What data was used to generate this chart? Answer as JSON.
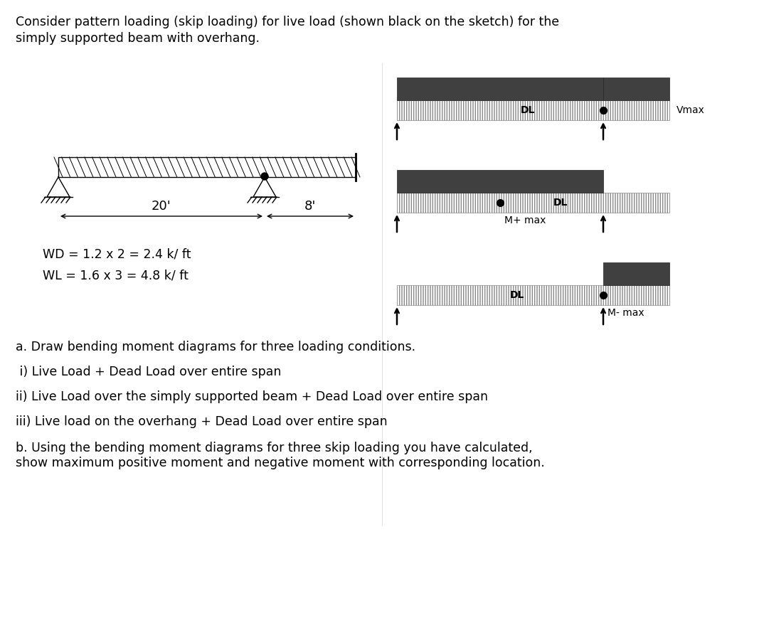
{
  "title_line1": "Consider pattern loading (skip loading) for live load (shown black on the sketch) for the",
  "title_line2": "simply supported beam with overhang.",
  "wd_text": "WD = 1.2 x 2 = 2.4 k/ ft",
  "wl_text": "WL = 1.6 x 3 = 4.8 k/ ft",
  "part_a_text": "a. Draw bending moment diagrams for three loading conditions.",
  "part_a_i": " i) Live Load + Dead Load over entire span",
  "part_a_ii": "ii) Live Load over the simply supported beam + Dead Load over entire span",
  "part_a_iii": "iii) Live load on the overhang + Dead Load over entire span",
  "part_b_text": "b. Using the bending moment diagrams for three skip loading you have calculated,\nshow maximum positive moment and negative moment with corresponding location.",
  "dark_color": "#404040",
  "background_color": "#ffffff",
  "font_size": 12.5
}
